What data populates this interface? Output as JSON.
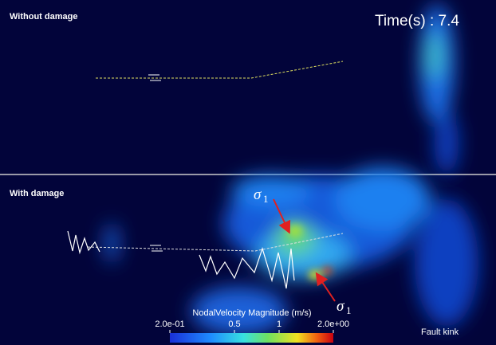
{
  "top_panel": {
    "label": "Without damage",
    "time": "Time(s) : 7.4"
  },
  "bottom_panel": {
    "label": "With damage",
    "footer": "Fault kink"
  },
  "annotations": [
    {
      "symbol": "σ",
      "subscript": "1"
    },
    {
      "symbol": "σ",
      "subscript": "1"
    }
  ],
  "colorbar": {
    "title": "NodalVelocity Magnitude (m/s)",
    "ticks": [
      "2.0e-01",
      "0.5",
      "1",
      "2.0e+00"
    ]
  }
}
